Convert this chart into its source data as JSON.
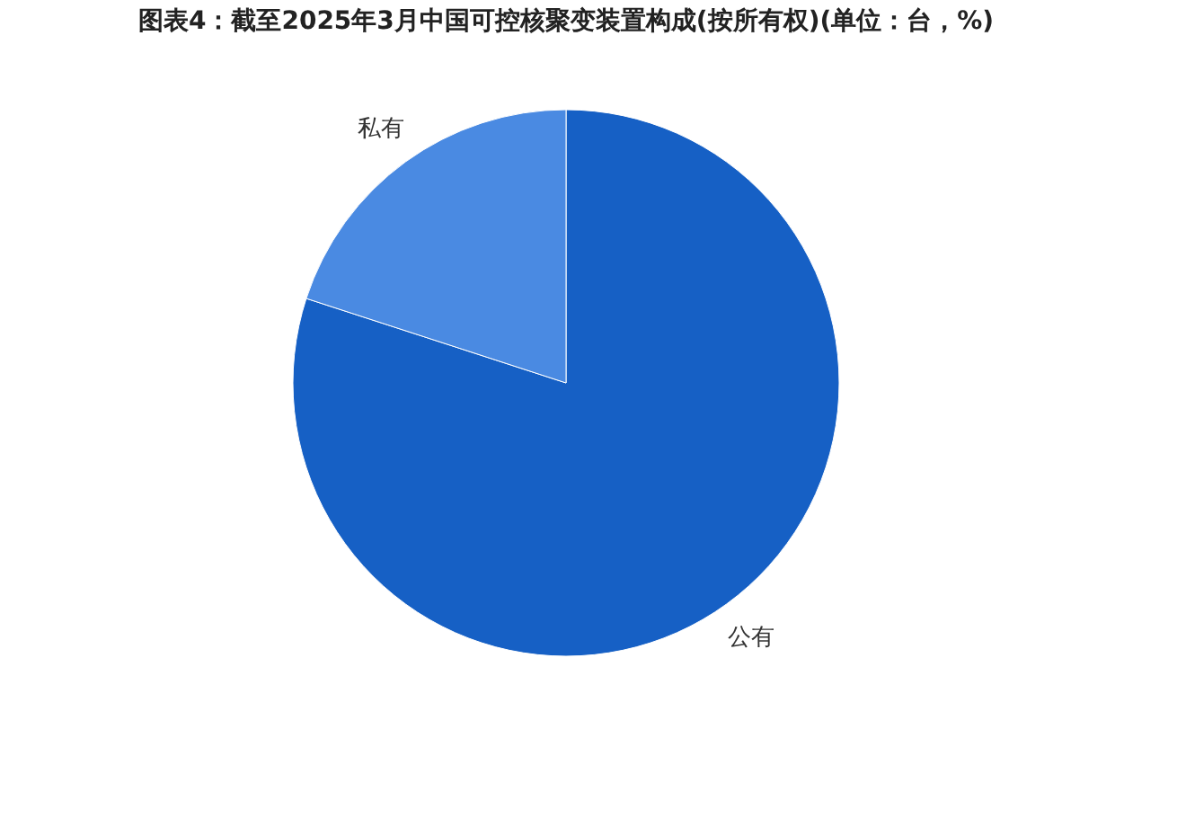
{
  "chart_data": {
    "type": "pie",
    "title": "图表4：截至2025年3月中国可控核聚变装置构成(按所有权)(单位：台，%)",
    "categories": [
      "公有",
      "私有"
    ],
    "values": [
      80,
      20
    ],
    "colors": [
      "#1660c5",
      "#4a8ae2"
    ],
    "legend": false
  }
}
